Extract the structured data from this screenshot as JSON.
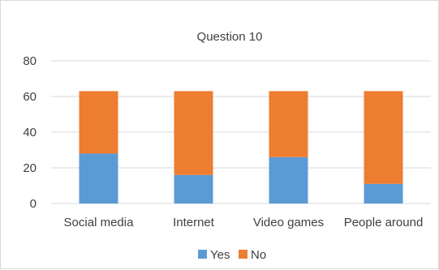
{
  "chart_data": {
    "type": "bar",
    "stacked": true,
    "title": "Question 10",
    "categories": [
      "Social media",
      "Internet",
      "Video games",
      "People around"
    ],
    "series": [
      {
        "name": "Yes",
        "color": "#5B9BD5",
        "values": [
          28,
          16,
          26,
          11
        ]
      },
      {
        "name": "No",
        "color": "#ED7D31",
        "values": [
          35,
          47,
          37,
          52
        ]
      }
    ],
    "ylim": [
      0,
      80
    ],
    "yticks": [
      0,
      20,
      40,
      60,
      80
    ],
    "grid": true,
    "legend": "bottom"
  }
}
